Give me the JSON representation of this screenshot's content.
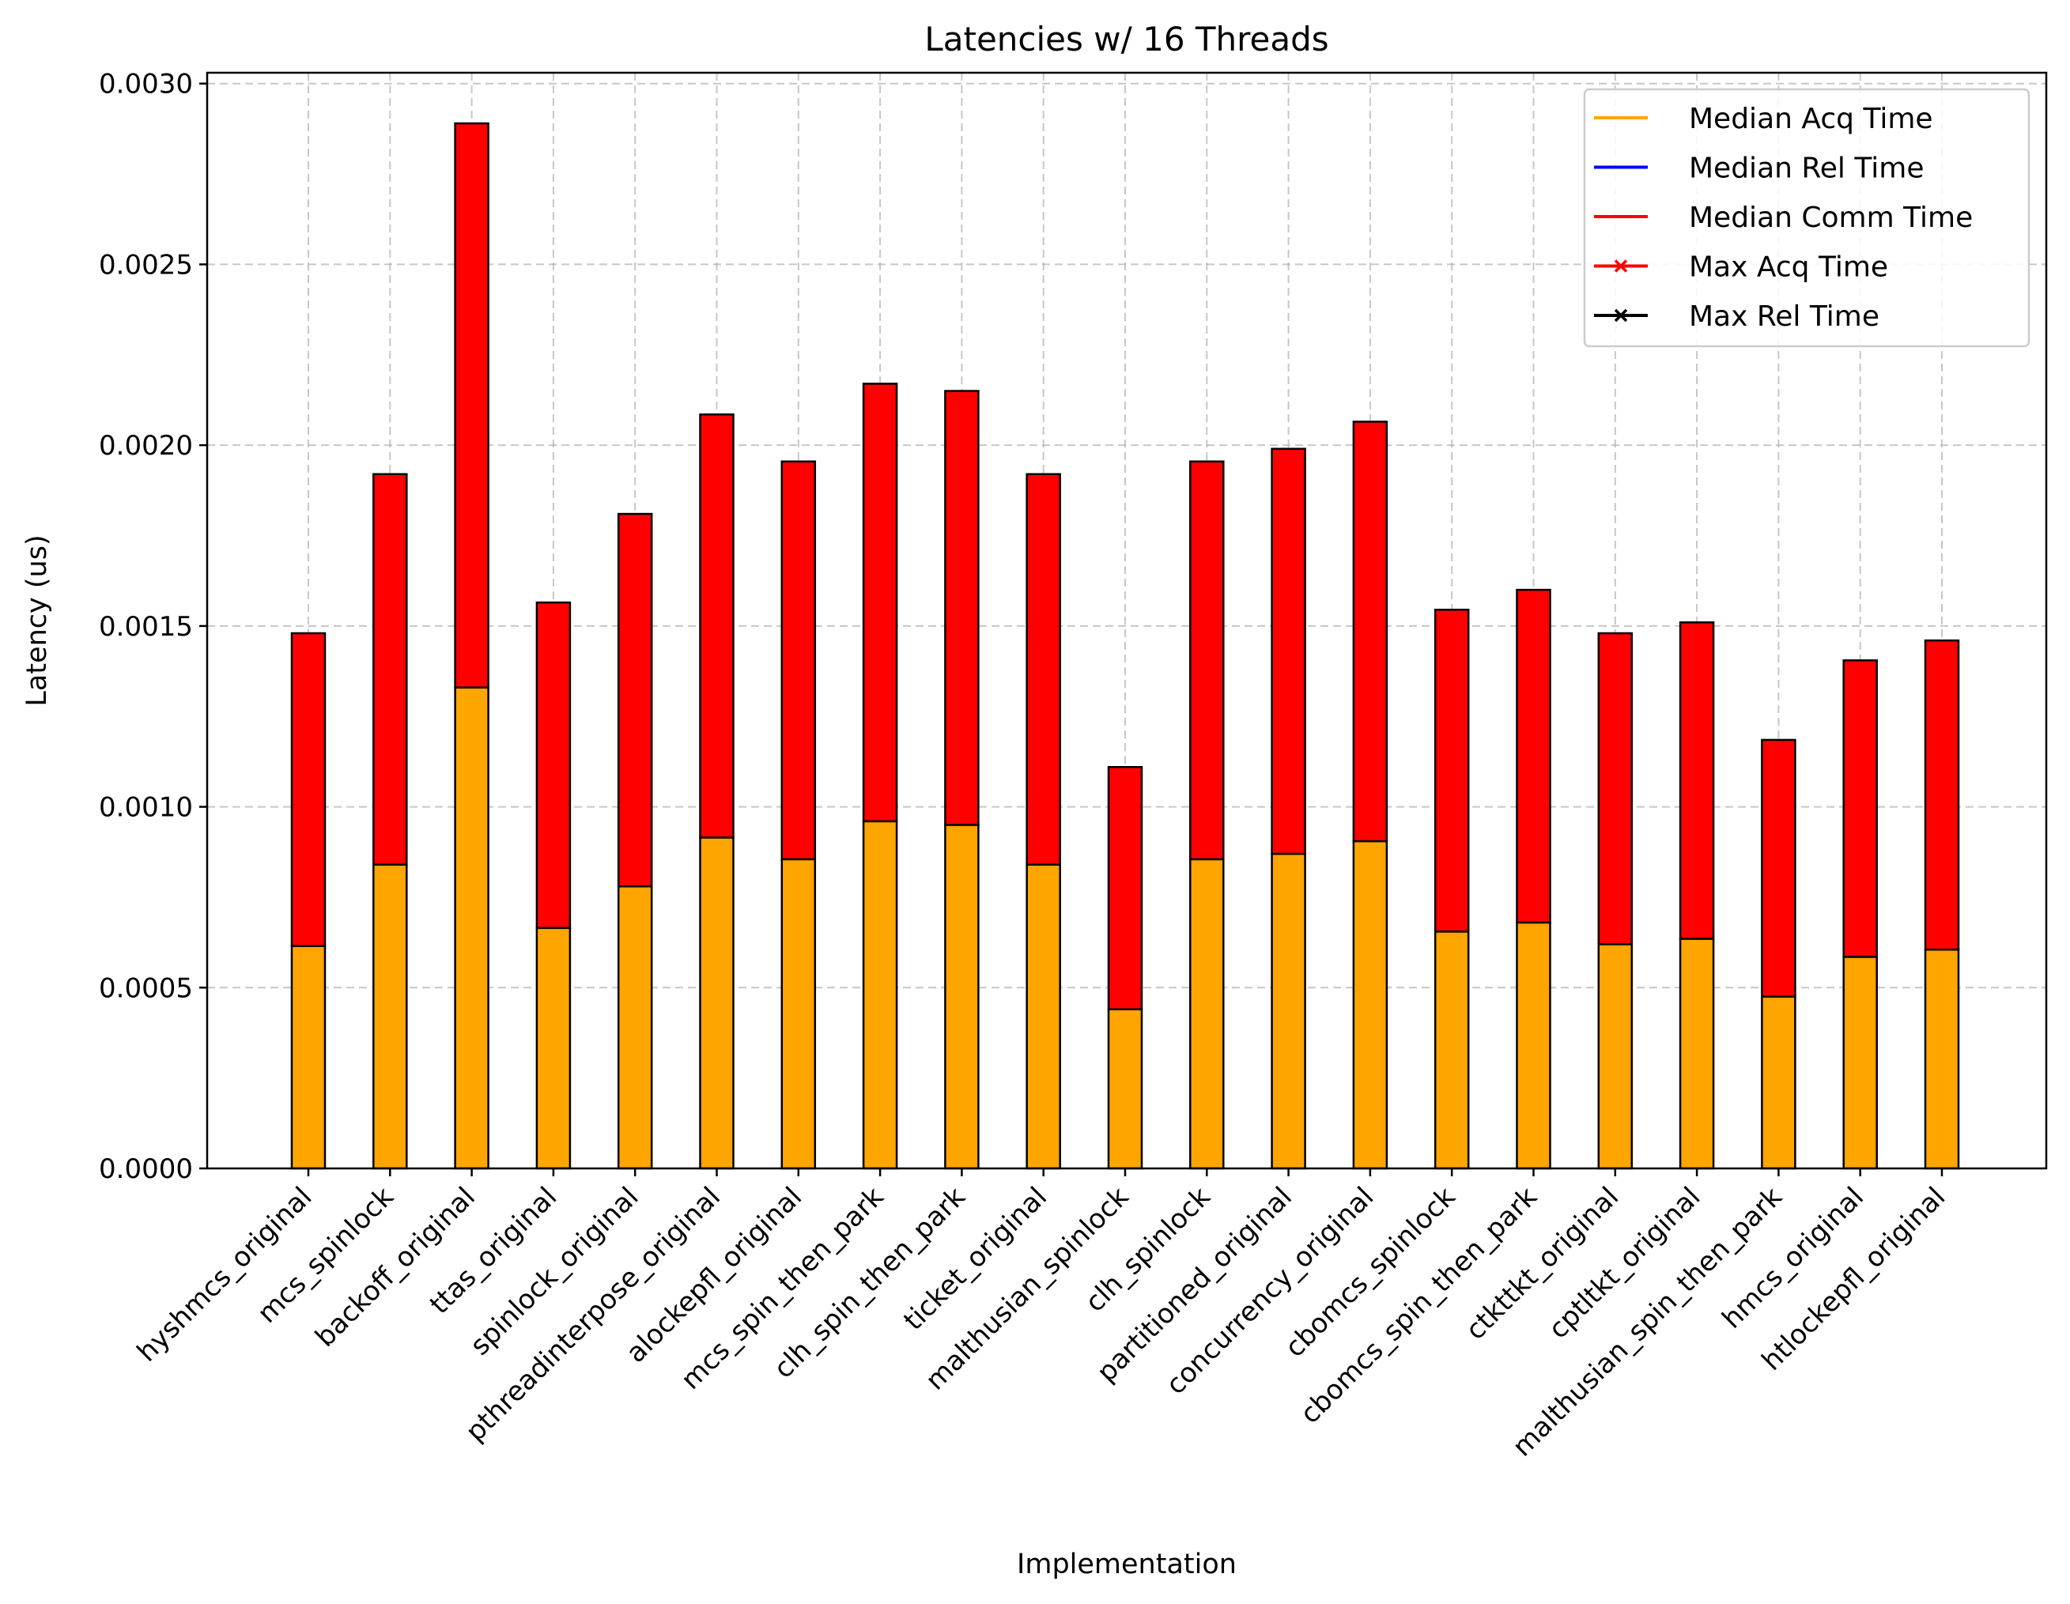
{
  "chart_data": {
    "type": "bar",
    "stacked": true,
    "title": "Latencies w/ 16 Threads",
    "xlabel": "Implementation",
    "ylabel": "Latency (us)",
    "ylim": [
      0,
      0.00303
    ],
    "yticks": [
      "0.0000",
      "0.0005",
      "0.0010",
      "0.0015",
      "0.0020",
      "0.0025",
      "0.0030"
    ],
    "ytick_values": [
      0,
      0.0005,
      0.001,
      0.0015,
      0.002,
      0.0025,
      0.003
    ],
    "grid": true,
    "legend_position": "top-right",
    "categories": [
      "hyshmcs_original",
      "mcs_spinlock",
      "backoff_original",
      "ttas_original",
      "spinlock_original",
      "pthreadinterpose_original",
      "alockepfl_original",
      "mcs_spin_then_park",
      "clh_spin_then_park",
      "ticket_original",
      "malthusian_spinlock",
      "clh_spinlock",
      "partitioned_original",
      "concurrency_original",
      "cbomcs_spinlock",
      "cbomcs_spin_then_park",
      "ctkttkt_original",
      "cptltkt_original",
      "malthusian_spin_then_park",
      "hmcs_original",
      "htlockepfl_original"
    ],
    "series": [
      {
        "name": "Median Acq Time",
        "color": "#ffa500",
        "values": [
          0.000615,
          0.00084,
          0.00133,
          0.000665,
          0.00078,
          0.000915,
          0.000855,
          0.00096,
          0.00095,
          0.00084,
          0.00044,
          0.000855,
          0.00087,
          0.000905,
          0.000655,
          0.00068,
          0.00062,
          0.000635,
          0.000475,
          0.000585,
          0.000605
        ]
      },
      {
        "name": "Median Rel Time",
        "color": "#0000ff",
        "values": [
          0,
          0,
          0,
          0,
          0,
          0,
          0,
          0,
          0,
          0,
          0,
          0,
          0,
          0,
          0,
          0,
          0,
          0,
          0,
          0,
          0
        ]
      },
      {
        "name": "Median Comm Time",
        "color": "#ff0000",
        "values": [
          0.000865,
          0.00108,
          0.00156,
          0.0009,
          0.00103,
          0.00117,
          0.0011,
          0.00121,
          0.0012,
          0.00108,
          0.00067,
          0.0011,
          0.00112,
          0.00116,
          0.00089,
          0.00092,
          0.00086,
          0.000875,
          0.00071,
          0.00082,
          0.000855
        ]
      }
    ],
    "legend": [
      {
        "name": "Median Acq Time",
        "color": "#ffa500",
        "marker": "none"
      },
      {
        "name": "Median Rel Time",
        "color": "#0000ff",
        "marker": "none"
      },
      {
        "name": "Median Comm Time",
        "color": "#ff0000",
        "marker": "none"
      },
      {
        "name": "Max Acq Time",
        "color": "#ff0000",
        "marker": "x"
      },
      {
        "name": "Max Rel Time",
        "color": "#000000",
        "marker": "x"
      }
    ]
  }
}
